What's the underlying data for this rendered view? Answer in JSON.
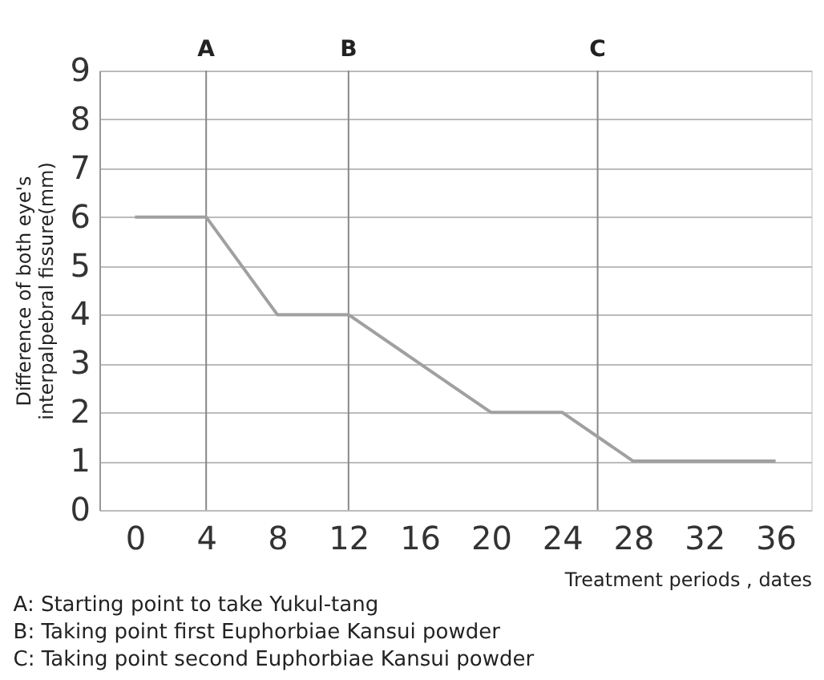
{
  "chart_data": {
    "type": "line",
    "xlabel": "Treatment periods , dates",
    "ylabel": [
      "Difference of both eye's",
      "interpalpebral fissure(mm)"
    ],
    "x": [
      0,
      4,
      8,
      12,
      16,
      20,
      24,
      28,
      36
    ],
    "series": [
      {
        "color": "#a0a0a0",
        "values": [
          6,
          6,
          4,
          4,
          3,
          2,
          2,
          1,
          1
        ]
      }
    ],
    "xlim": [
      -2,
      38
    ],
    "xticks": [
      0,
      4,
      8,
      12,
      16,
      20,
      24,
      28,
      32,
      36
    ],
    "ylim": [
      0,
      9
    ],
    "yticks": [
      0,
      1,
      2,
      3,
      4,
      5,
      6,
      7,
      8,
      9
    ],
    "grid": "y",
    "marker": "none",
    "line_style": "solid",
    "ref_lines": [
      {
        "axis": "x",
        "value": 4,
        "label": "A",
        "color": "#888888"
      },
      {
        "axis": "x",
        "value": 12,
        "label": "B",
        "color": "#888888"
      },
      {
        "axis": "x",
        "value": 26,
        "label": "C",
        "color": "#888888"
      }
    ],
    "annotations": [
      "A: Starting point to take Yukul-tang",
      "B: Taking point first Euphorbiae Kansui powder",
      "C: Taking point second Euphorbiae Kansui powder"
    ]
  }
}
